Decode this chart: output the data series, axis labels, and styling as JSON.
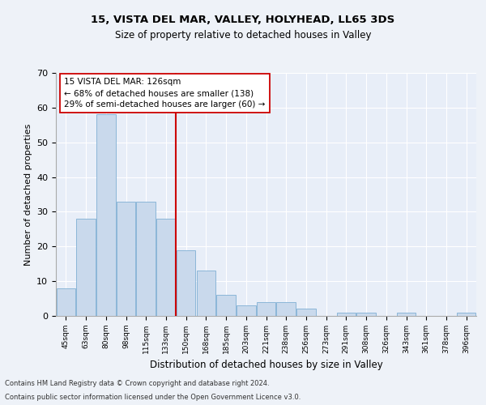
{
  "title1": "15, VISTA DEL MAR, VALLEY, HOLYHEAD, LL65 3DS",
  "title2": "Size of property relative to detached houses in Valley",
  "xlabel": "Distribution of detached houses by size in Valley",
  "ylabel": "Number of detached properties",
  "categories": [
    "45sqm",
    "63sqm",
    "80sqm",
    "98sqm",
    "115sqm",
    "133sqm",
    "150sqm",
    "168sqm",
    "185sqm",
    "203sqm",
    "221sqm",
    "238sqm",
    "256sqm",
    "273sqm",
    "291sqm",
    "308sqm",
    "326sqm",
    "343sqm",
    "361sqm",
    "378sqm",
    "396sqm"
  ],
  "values": [
    8,
    28,
    58,
    33,
    33,
    28,
    19,
    13,
    6,
    3,
    4,
    4,
    2,
    0,
    1,
    1,
    0,
    1,
    0,
    0,
    1
  ],
  "bar_color": "#c9d9ec",
  "bar_edgecolor": "#7fafd4",
  "vline_x": 5.5,
  "vline_color": "#cc0000",
  "annotation_text": "15 VISTA DEL MAR: 126sqm\n← 68% of detached houses are smaller (138)\n29% of semi-detached houses are larger (60) →",
  "annotation_box_color": "#ffffff",
  "annotation_box_edgecolor": "#cc0000",
  "ylim": [
    0,
    70
  ],
  "yticks": [
    0,
    10,
    20,
    30,
    40,
    50,
    60,
    70
  ],
  "footer1": "Contains HM Land Registry data © Crown copyright and database right 2024.",
  "footer2": "Contains public sector information licensed under the Open Government Licence v3.0.",
  "background_color": "#eef2f8",
  "plot_bg_color": "#e8eef8"
}
